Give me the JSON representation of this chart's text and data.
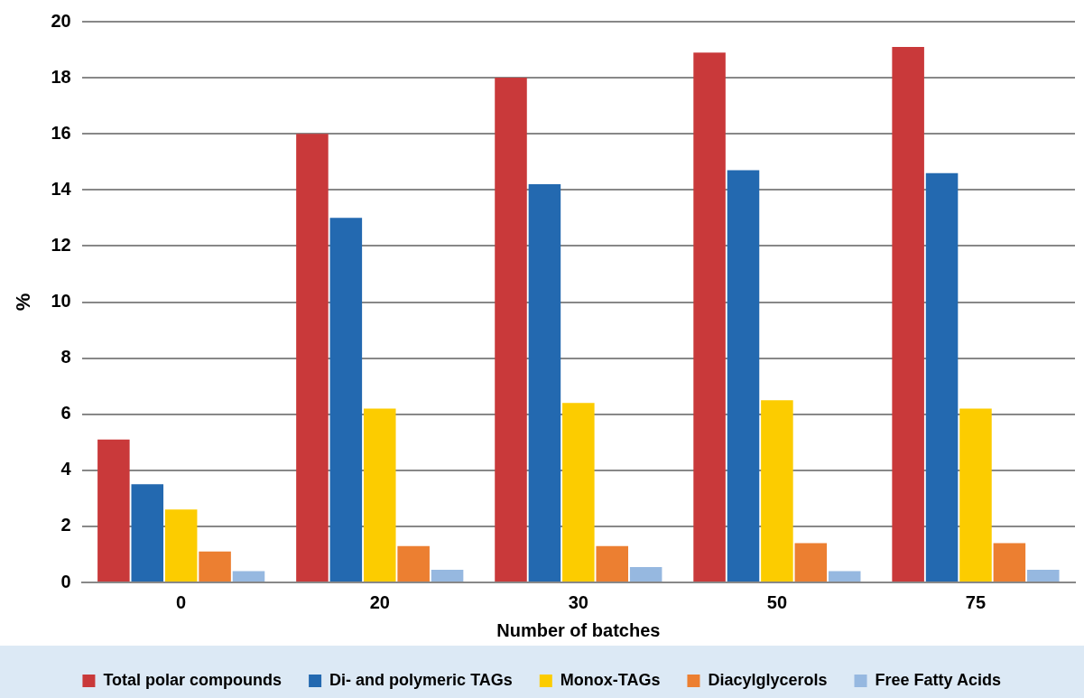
{
  "chart_data": {
    "type": "bar",
    "xlabel": "Number of batches",
    "ylabel": "%",
    "categories": [
      "0",
      "20",
      "30",
      "50",
      "75"
    ],
    "series": [
      {
        "name": "Total polar compounds",
        "color": "#c9393a",
        "values": [
          5.1,
          16,
          18,
          18.9,
          19.1
        ]
      },
      {
        "name": "Di- and polymeric TAGs",
        "color": "#2369b0",
        "values": [
          3.5,
          13,
          14.2,
          14.7,
          14.6
        ]
      },
      {
        "name": "Monox-TAGs",
        "color": "#fccc00",
        "values": [
          2.6,
          6.2,
          6.4,
          6.5,
          6.2
        ]
      },
      {
        "name": "Diacylglycerols",
        "color": "#ec7f31",
        "values": [
          1.1,
          1.3,
          1.3,
          1.4,
          1.4
        ]
      },
      {
        "name": "Free Fatty Acids",
        "color": "#96b8e0",
        "values": [
          0.4,
          0.45,
          0.55,
          0.4,
          0.45
        ]
      }
    ],
    "ylim": [
      0,
      20
    ],
    "yticks": [
      0,
      2,
      4,
      6,
      8,
      10,
      12,
      14,
      16,
      18,
      20
    ],
    "grid": "y",
    "legend": "bottom"
  }
}
